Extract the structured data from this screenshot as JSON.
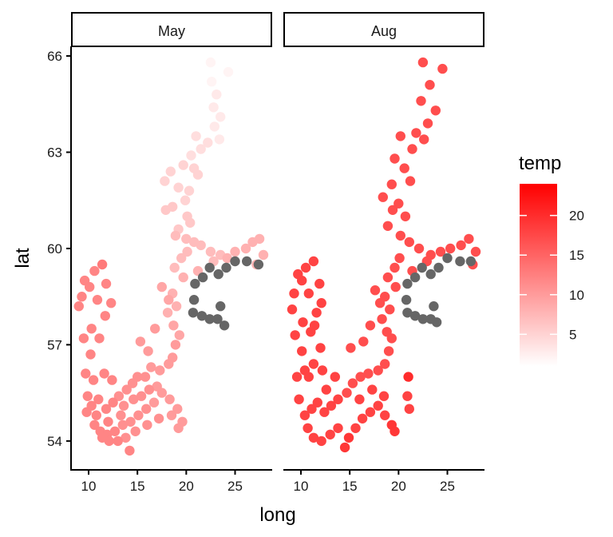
{
  "chart_data": {
    "type": "scatter",
    "facets": [
      "May",
      "Aug"
    ],
    "xlabel": "long",
    "ylabel": "lat",
    "xlim": [
      8.2,
      28.8
    ],
    "ylim": [
      53.1,
      66.3
    ],
    "xticks": [
      10,
      15,
      20,
      25
    ],
    "yticks": [
      54,
      57,
      60,
      63,
      66
    ],
    "legend": {
      "title": "temp",
      "placement": "right",
      "min": 1,
      "max": 24,
      "ticks": [
        5,
        10,
        15,
        20
      ],
      "low_color": "#ffffff",
      "high_color": "#ff0000",
      "na_color": "#666666"
    },
    "series": [
      {
        "name": "May",
        "points": [
          [
            22.5,
            65.8,
            2
          ],
          [
            24.3,
            65.5,
            2
          ],
          [
            22.6,
            65.2,
            2
          ],
          [
            23.1,
            64.8,
            3
          ],
          [
            22.8,
            64.4,
            3
          ],
          [
            23.5,
            64.1,
            3
          ],
          [
            22.9,
            63.8,
            3
          ],
          [
            23.4,
            63.4,
            3
          ],
          [
            21.0,
            63.5,
            4
          ],
          [
            22.2,
            63.3,
            4
          ],
          [
            21.5,
            63.1,
            4
          ],
          [
            20.5,
            62.9,
            4
          ],
          [
            19.7,
            62.6,
            5
          ],
          [
            20.8,
            62.5,
            5
          ],
          [
            21.2,
            62.3,
            5
          ],
          [
            18.4,
            62.4,
            5
          ],
          [
            19.2,
            61.9,
            5
          ],
          [
            17.8,
            62.1,
            5
          ],
          [
            20.3,
            61.8,
            5
          ],
          [
            19.9,
            61.5,
            5
          ],
          [
            18.6,
            61.3,
            6
          ],
          [
            17.9,
            61.2,
            6
          ],
          [
            20.1,
            61.0,
            6
          ],
          [
            20.4,
            60.8,
            6
          ],
          [
            19.2,
            60.6,
            6
          ],
          [
            18.9,
            60.4,
            7
          ],
          [
            20.0,
            60.3,
            7
          ],
          [
            20.8,
            60.2,
            7
          ],
          [
            21.5,
            60.1,
            7
          ],
          [
            22.5,
            59.9,
            7
          ],
          [
            23.5,
            59.8,
            7
          ],
          [
            24.2,
            59.7,
            8
          ],
          [
            25.0,
            59.9,
            8
          ],
          [
            26.1,
            60.0,
            8
          ],
          [
            26.8,
            60.2,
            8
          ],
          [
            27.5,
            60.3,
            8
          ],
          [
            27.9,
            59.8,
            8
          ],
          [
            27.2,
            59.5,
            8
          ],
          [
            20.1,
            59.9,
            7
          ],
          [
            19.5,
            59.7,
            7
          ],
          [
            18.8,
            59.4,
            7
          ],
          [
            19.7,
            59.1,
            8
          ],
          [
            21.2,
            59.3,
            8
          ],
          [
            22.8,
            59.6,
            7
          ],
          [
            18.6,
            58.6,
            8
          ],
          [
            19.0,
            58.2,
            8
          ],
          [
            18.1,
            58.0,
            8
          ],
          [
            18.7,
            57.6,
            9
          ],
          [
            17.5,
            58.8,
            9
          ],
          [
            19.3,
            57.3,
            9
          ],
          [
            18.9,
            57.0,
            10
          ],
          [
            18.6,
            56.6,
            10
          ],
          [
            18.2,
            56.4,
            10
          ],
          [
            17.3,
            56.2,
            10
          ],
          [
            16.4,
            56.3,
            10
          ],
          [
            15.8,
            56.0,
            11
          ],
          [
            15.0,
            56.0,
            11
          ],
          [
            14.5,
            55.8,
            11
          ],
          [
            13.9,
            55.6,
            11
          ],
          [
            13.1,
            55.4,
            11
          ],
          [
            12.5,
            55.2,
            12
          ],
          [
            11.8,
            55.0,
            12
          ],
          [
            11.0,
            55.3,
            12
          ],
          [
            10.3,
            55.1,
            12
          ],
          [
            9.8,
            54.9,
            12
          ],
          [
            10.6,
            54.5,
            12
          ],
          [
            11.2,
            54.3,
            12
          ],
          [
            11.9,
            54.2,
            12
          ],
          [
            12.7,
            54.3,
            12
          ],
          [
            13.5,
            54.5,
            11
          ],
          [
            14.3,
            54.6,
            11
          ],
          [
            15.1,
            54.8,
            11
          ],
          [
            15.9,
            55.0,
            11
          ],
          [
            16.7,
            55.2,
            10
          ],
          [
            17.5,
            55.5,
            10
          ],
          [
            18.3,
            55.3,
            10
          ],
          [
            19.1,
            55.0,
            10
          ],
          [
            19.6,
            54.6,
            10
          ],
          [
            19.2,
            54.4,
            10
          ],
          [
            18.5,
            54.8,
            10
          ],
          [
            17.2,
            54.7,
            11
          ],
          [
            16.0,
            54.5,
            11
          ],
          [
            14.8,
            54.3,
            11
          ],
          [
            13.8,
            54.1,
            11
          ],
          [
            13.0,
            54.0,
            12
          ],
          [
            12.1,
            54.0,
            12
          ],
          [
            11.4,
            54.1,
            12
          ],
          [
            14.2,
            53.7,
            12
          ],
          [
            13.6,
            55.1,
            11
          ],
          [
            12.4,
            55.9,
            12
          ],
          [
            11.6,
            56.1,
            12
          ],
          [
            10.5,
            55.9,
            12
          ],
          [
            9.7,
            56.1,
            12
          ],
          [
            10.2,
            56.7,
            12
          ],
          [
            9.5,
            57.2,
            12
          ],
          [
            10.3,
            57.5,
            12
          ],
          [
            11.1,
            57.2,
            12
          ],
          [
            11.7,
            57.9,
            12
          ],
          [
            10.9,
            58.4,
            12
          ],
          [
            10.1,
            58.8,
            12
          ],
          [
            9.3,
            58.5,
            12
          ],
          [
            9.0,
            58.2,
            12
          ],
          [
            9.6,
            59.0,
            12
          ],
          [
            11.4,
            59.5,
            13
          ],
          [
            10.6,
            59.3,
            12
          ],
          [
            11.8,
            58.9,
            12
          ],
          [
            12.3,
            58.3,
            12
          ],
          [
            16.1,
            56.8,
            10
          ],
          [
            15.3,
            57.1,
            10
          ],
          [
            16.8,
            57.5,
            10
          ],
          [
            18.2,
            58.4,
            9
          ],
          [
            17.0,
            55.7,
            10
          ],
          [
            16.2,
            55.6,
            11
          ],
          [
            15.4,
            55.4,
            11
          ],
          [
            14.6,
            55.3,
            11
          ],
          [
            13.3,
            54.8,
            11
          ],
          [
            12.0,
            54.6,
            12
          ],
          [
            10.8,
            54.8,
            12
          ],
          [
            9.9,
            55.4,
            12
          ],
          [
            20.9,
            58.9,
            null
          ],
          [
            21.7,
            59.1,
            null
          ],
          [
            22.4,
            59.4,
            null
          ],
          [
            23.3,
            59.2,
            null
          ],
          [
            24.1,
            59.4,
            null
          ],
          [
            25.0,
            59.6,
            null
          ],
          [
            26.2,
            59.6,
            null
          ],
          [
            27.4,
            59.5,
            null
          ],
          [
            20.8,
            58.4,
            null
          ],
          [
            20.7,
            58.0,
            null
          ],
          [
            21.6,
            57.9,
            null
          ],
          [
            22.4,
            57.8,
            null
          ],
          [
            23.2,
            57.8,
            null
          ],
          [
            23.9,
            57.6,
            null
          ],
          [
            23.5,
            58.2,
            null
          ]
        ]
      },
      {
        "name": "Aug",
        "points": [
          [
            22.5,
            65.8,
            17
          ],
          [
            24.5,
            65.6,
            17
          ],
          [
            23.2,
            65.1,
            17
          ],
          [
            22.3,
            64.6,
            17
          ],
          [
            23.8,
            64.3,
            17
          ],
          [
            23.0,
            63.9,
            17
          ],
          [
            21.8,
            63.6,
            17
          ],
          [
            22.6,
            63.4,
            17
          ],
          [
            20.2,
            63.5,
            17
          ],
          [
            21.4,
            63.1,
            17
          ],
          [
            19.6,
            62.8,
            17
          ],
          [
            20.6,
            62.5,
            17
          ],
          [
            21.2,
            62.1,
            17
          ],
          [
            19.3,
            62.0,
            17
          ],
          [
            18.4,
            61.6,
            17
          ],
          [
            20.0,
            61.4,
            17
          ],
          [
            19.4,
            61.2,
            17
          ],
          [
            20.7,
            61.0,
            17
          ],
          [
            18.9,
            60.7,
            17
          ],
          [
            20.2,
            60.4,
            17
          ],
          [
            21.1,
            60.2,
            17
          ],
          [
            22.1,
            60.0,
            17
          ],
          [
            23.3,
            59.8,
            17
          ],
          [
            24.3,
            59.9,
            17
          ],
          [
            25.3,
            60.0,
            17
          ],
          [
            26.4,
            60.1,
            17
          ],
          [
            27.2,
            60.3,
            17
          ],
          [
            27.9,
            59.9,
            17
          ],
          [
            27.6,
            59.5,
            17
          ],
          [
            20.1,
            59.7,
            17
          ],
          [
            19.6,
            59.4,
            17
          ],
          [
            18.9,
            59.1,
            17
          ],
          [
            19.7,
            58.8,
            17
          ],
          [
            21.4,
            59.3,
            17
          ],
          [
            22.9,
            59.6,
            17
          ],
          [
            18.6,
            58.5,
            17
          ],
          [
            19.1,
            58.1,
            17
          ],
          [
            18.3,
            57.8,
            17
          ],
          [
            18.8,
            57.4,
            17
          ],
          [
            17.6,
            58.7,
            17
          ],
          [
            19.3,
            57.2,
            17
          ],
          [
            19.0,
            56.8,
            17
          ],
          [
            18.6,
            56.4,
            17
          ],
          [
            17.9,
            56.2,
            17
          ],
          [
            16.9,
            56.1,
            17
          ],
          [
            16.1,
            56.0,
            17
          ],
          [
            15.3,
            55.8,
            17
          ],
          [
            14.7,
            55.5,
            17
          ],
          [
            13.8,
            55.3,
            18
          ],
          [
            13.1,
            55.1,
            18
          ],
          [
            12.4,
            54.9,
            18
          ],
          [
            11.7,
            55.2,
            18
          ],
          [
            11.1,
            55.0,
            18
          ],
          [
            10.4,
            54.8,
            18
          ],
          [
            9.8,
            55.3,
            18
          ],
          [
            10.7,
            54.4,
            18
          ],
          [
            11.3,
            54.1,
            18
          ],
          [
            12.1,
            54.0,
            18
          ],
          [
            13.0,
            54.2,
            18
          ],
          [
            13.8,
            54.4,
            18
          ],
          [
            14.5,
            53.8,
            19
          ],
          [
            14.9,
            54.1,
            19
          ],
          [
            15.6,
            54.4,
            18
          ],
          [
            16.3,
            54.7,
            18
          ],
          [
            17.1,
            54.9,
            18
          ],
          [
            17.9,
            55.1,
            18
          ],
          [
            18.6,
            54.8,
            18
          ],
          [
            19.3,
            54.5,
            19
          ],
          [
            19.6,
            54.3,
            19
          ],
          [
            18.5,
            55.4,
            18
          ],
          [
            17.3,
            55.6,
            18
          ],
          [
            16.0,
            55.3,
            18
          ],
          [
            13.5,
            56.0,
            18
          ],
          [
            12.2,
            56.2,
            18
          ],
          [
            11.3,
            56.4,
            18
          ],
          [
            10.4,
            56.2,
            18
          ],
          [
            9.6,
            56.0,
            18
          ],
          [
            10.1,
            56.8,
            18
          ],
          [
            9.4,
            57.3,
            18
          ],
          [
            10.2,
            57.7,
            18
          ],
          [
            11.0,
            57.4,
            18
          ],
          [
            11.6,
            58.0,
            18
          ],
          [
            10.8,
            58.6,
            18
          ],
          [
            10.1,
            59.0,
            18
          ],
          [
            9.3,
            58.6,
            18
          ],
          [
            9.1,
            58.1,
            18
          ],
          [
            9.7,
            59.2,
            18
          ],
          [
            11.3,
            59.6,
            18
          ],
          [
            10.5,
            59.4,
            18
          ],
          [
            11.9,
            58.9,
            18
          ],
          [
            12.1,
            58.3,
            18
          ],
          [
            15.1,
            56.9,
            17
          ],
          [
            16.4,
            57.1,
            17
          ],
          [
            17.1,
            57.6,
            17
          ],
          [
            18.1,
            58.3,
            17
          ],
          [
            21.0,
            56.0,
            20
          ],
          [
            20.9,
            55.4,
            18
          ],
          [
            21.1,
            55.0,
            18
          ],
          [
            12.6,
            55.6,
            18
          ],
          [
            12.0,
            56.9,
            18
          ],
          [
            11.4,
            57.6,
            18
          ],
          [
            10.8,
            56.0,
            18
          ],
          [
            20.9,
            58.9,
            null
          ],
          [
            21.7,
            59.1,
            null
          ],
          [
            22.4,
            59.4,
            null
          ],
          [
            23.3,
            59.2,
            null
          ],
          [
            24.1,
            59.4,
            null
          ],
          [
            25.0,
            59.7,
            null
          ],
          [
            26.3,
            59.6,
            null
          ],
          [
            27.4,
            59.6,
            null
          ],
          [
            20.8,
            58.4,
            null
          ],
          [
            20.9,
            58.0,
            null
          ],
          [
            21.7,
            57.9,
            null
          ],
          [
            22.5,
            57.8,
            null
          ],
          [
            23.3,
            57.8,
            null
          ],
          [
            23.9,
            57.7,
            null
          ],
          [
            23.6,
            58.2,
            null
          ]
        ]
      }
    ]
  }
}
